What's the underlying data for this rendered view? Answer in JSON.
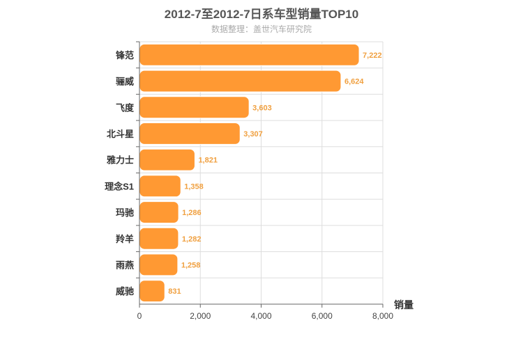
{
  "chart_data": {
    "type": "bar",
    "orientation": "horizontal",
    "title": "2012-7至2012-7日系车型销量TOP10",
    "subtitle": "数据整理：盖世汽车研究院",
    "categories": [
      "锋范",
      "骊威",
      "飞度",
      "北斗星",
      "雅力士",
      "理念S1",
      "玛驰",
      "羚羊",
      "雨燕",
      "威驰"
    ],
    "values": [
      7222,
      6624,
      3603,
      3307,
      1821,
      1358,
      1286,
      1282,
      1258,
      831
    ],
    "value_labels": [
      "7,222",
      "6,624",
      "3,603",
      "3,307",
      "1,821",
      "1,358",
      "1,286",
      "1,282",
      "1,258",
      "831"
    ],
    "xlabel": "销量",
    "ylabel": "",
    "xlim": [
      0,
      8000
    ],
    "ticks": [
      0,
      2000,
      4000,
      6000,
      8000
    ],
    "tick_labels": [
      "0",
      "2,000",
      "4,000",
      "6,000",
      "8,000"
    ],
    "grid": true,
    "colors": {
      "bar": "#ff9933",
      "bar_stroke": "#ffffff",
      "value_label": "#f0a040",
      "grid": "#dddddd",
      "axis": "#666666"
    }
  }
}
